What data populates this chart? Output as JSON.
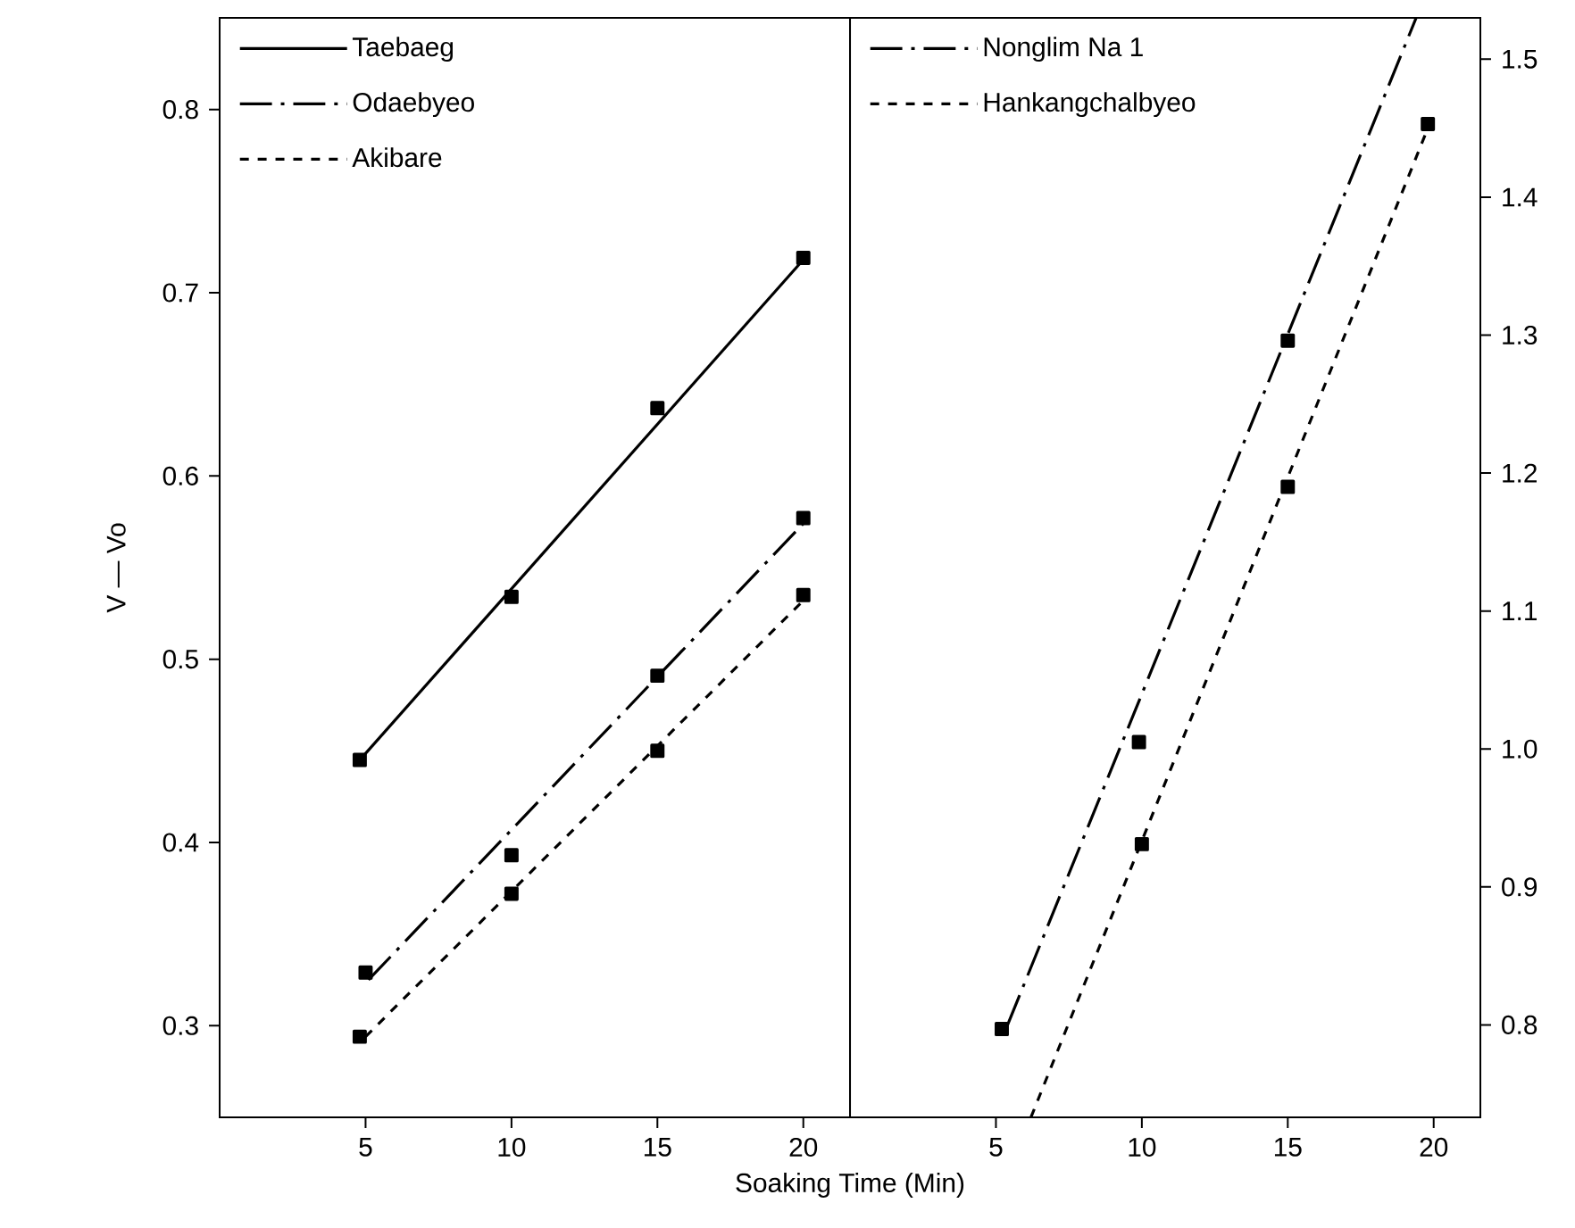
{
  "chart_data": [
    {
      "type": "line",
      "xlabel": "Soaking Time (Min)",
      "ylabel": "V — Vo",
      "xlim": [
        0,
        21.6
      ],
      "ylim": [
        0.25,
        0.85
      ],
      "xticks": [
        5,
        10,
        15,
        20
      ],
      "yticks": [
        0.3,
        0.4,
        0.5,
        0.6,
        0.7,
        0.8
      ],
      "legend": "top left",
      "grid": false,
      "series": [
        {
          "name": "Taebaeg",
          "color": "#000000",
          "line_style": "solid",
          "marker": "none",
          "x": [
            4.8,
            20
          ],
          "values": [
            0.445,
            0.718
          ]
        },
        {
          "name": "Odaebyeo",
          "color": "#000000",
          "line_style": "dashdot",
          "marker": "none",
          "x": [
            5.1,
            20
          ],
          "values": [
            0.325,
            0.574
          ]
        },
        {
          "name": "Akibare",
          "color": "#000000",
          "line_style": "dashed",
          "marker": "none",
          "x": [
            5,
            20
          ],
          "values": [
            0.294,
            0.532
          ]
        },
        {
          "type": "scatter",
          "color": "#000000",
          "marker": "square",
          "x": [
            4.8,
            10,
            15,
            20
          ],
          "values": [
            0.445,
            0.534,
            0.637,
            0.719
          ]
        },
        {
          "type": "scatter",
          "color": "#000000",
          "marker": "square",
          "x": [
            5,
            10,
            15,
            20
          ],
          "values": [
            0.329,
            0.393,
            0.491,
            0.577
          ]
        },
        {
          "type": "scatter",
          "color": "#000000",
          "marker": "square",
          "x": [
            4.8,
            10,
            15,
            20
          ],
          "values": [
            0.294,
            0.372,
            0.45,
            0.535
          ]
        }
      ]
    },
    {
      "type": "line",
      "xlim": [
        0,
        21.6
      ],
      "ylim": [
        0.733,
        1.53
      ],
      "xticks": [
        5,
        10,
        15,
        20
      ],
      "yticks": [
        0.8,
        0.9,
        {
          "value": 1.0,
          "label": "1.0"
        },
        1.1,
        1.2,
        1.3,
        1.4,
        1.5
      ],
      "legend": "top left",
      "grid": false,
      "series": [
        {
          "name": "Nonglim Na 1",
          "color": "#000000",
          "line_style": "dashdot",
          "marker": "none",
          "x": [
            5.4,
            19.4
          ],
          "values": [
            0.8,
            1.53
          ]
        },
        {
          "name": "Hankangchalbyeo",
          "color": "#000000",
          "line_style": "dashed",
          "marker": "none",
          "x": [
            6.2,
            19.8
          ],
          "values": [
            0.733,
            1.45
          ]
        },
        {
          "type": "scatter",
          "color": "#000000",
          "marker": "square",
          "x": [
            5.2,
            9.9,
            15
          ],
          "values": [
            0.797,
            1.005,
            1.296
          ]
        },
        {
          "type": "scatter",
          "color": "#000000",
          "marker": "square",
          "x": [
            10,
            15,
            19.8
          ],
          "values": [
            0.931,
            1.19,
            1.453
          ]
        }
      ]
    }
  ]
}
